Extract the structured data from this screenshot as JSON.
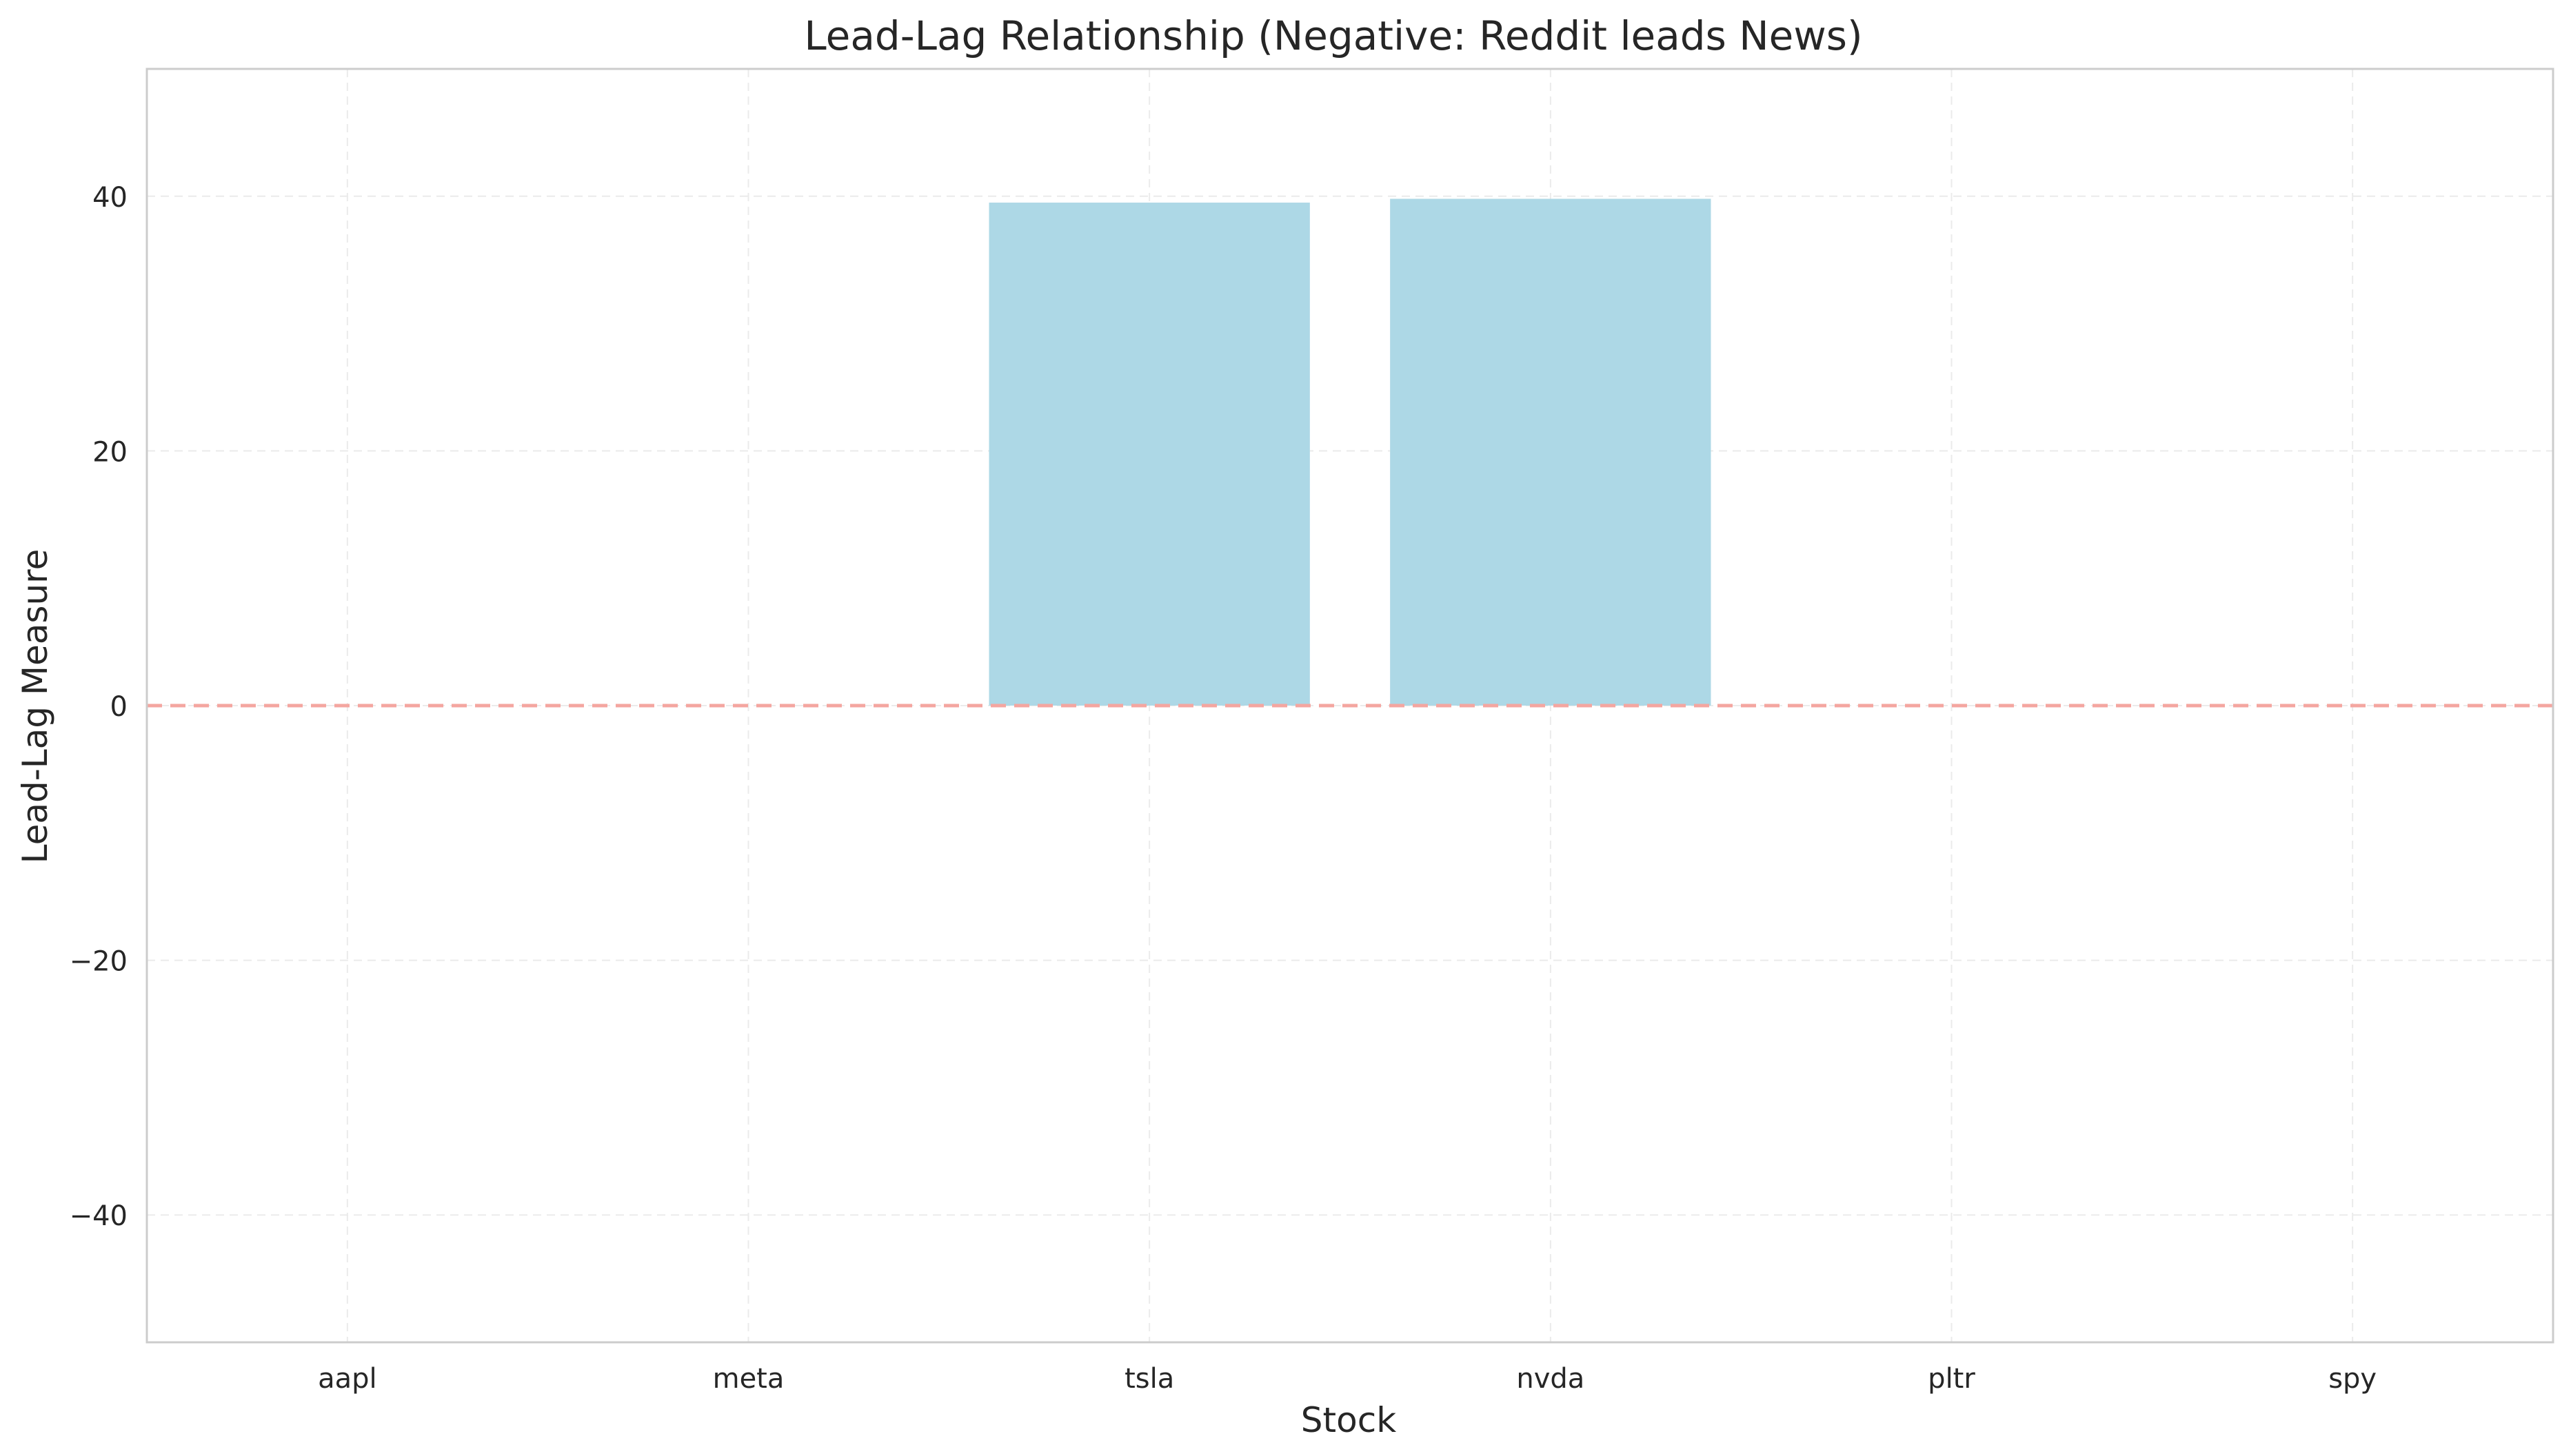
{
  "chart_data": {
    "type": "bar",
    "title": "Lead-Lag Relationship (Negative: Reddit leads News)",
    "xlabel": "Stock",
    "ylabel": "Lead-Lag Measure",
    "categories": [
      "aapl",
      "meta",
      "tsla",
      "nvda",
      "pltr",
      "spy"
    ],
    "values": [
      0,
      0,
      39.5,
      39.8,
      0,
      0
    ],
    "ylim": [
      -50,
      50
    ],
    "yticks": [
      -40,
      -20,
      0,
      20,
      40
    ],
    "ytick_labels": [
      "−40",
      "−20",
      "0",
      "20",
      "40"
    ],
    "grid": true,
    "reference_line": {
      "y": 0,
      "style": "dashed"
    },
    "colors": {
      "bar": "#add8e6",
      "reference_line": "#f4a6a0",
      "grid": "#ebebeb",
      "axes_border": "#cccccc"
    }
  }
}
